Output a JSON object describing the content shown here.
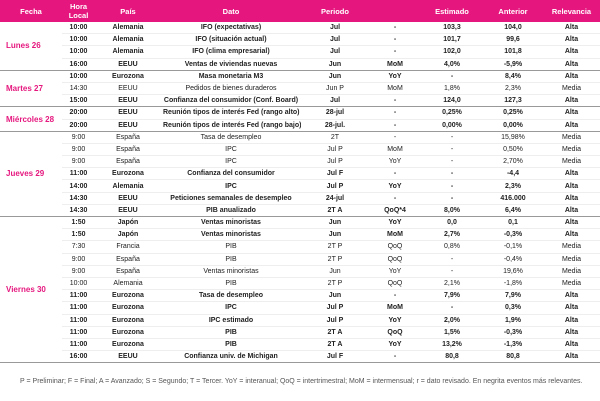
{
  "table": {
    "headers": [
      "Fecha",
      "Hora Local",
      "País",
      "Dato",
      "Periodo",
      "Estimado",
      "Anterior",
      "Relevancia"
    ],
    "groups": [
      {
        "date": "Lunes 26",
        "rows": [
          {
            "bold": true,
            "cells": [
              "10:00",
              "Alemania",
              "IFO (expectativas)",
              "Jul",
              "-",
              "103,3",
              "104,0",
              "Alta"
            ]
          },
          {
            "bold": true,
            "cells": [
              "10:00",
              "Alemania",
              "IFO (situación actual)",
              "Jul",
              "-",
              "101,7",
              "99,6",
              "Alta"
            ]
          },
          {
            "bold": true,
            "cells": [
              "10:00",
              "Alemania",
              "IFO (clima empresarial)",
              "Jul",
              "-",
              "102,0",
              "101,8",
              "Alta"
            ]
          },
          {
            "bold": true,
            "cells": [
              "16:00",
              "EEUU",
              "Ventas de viviendas nuevas",
              "Jun",
              "MoM",
              "4,0%",
              "-5,9%",
              "Alta"
            ]
          }
        ]
      },
      {
        "date": "Martes 27",
        "rows": [
          {
            "bold": true,
            "cells": [
              "10:00",
              "Eurozona",
              "Masa monetaria M3",
              "Jun",
              "YoY",
              "-",
              "8,4%",
              "Alta"
            ]
          },
          {
            "bold": false,
            "cells": [
              "14:30",
              "EEUU",
              "Pedidos de bienes duraderos",
              "Jun P",
              "MoM",
              "1,8%",
              "2,3%",
              "Media"
            ]
          },
          {
            "bold": true,
            "cells": [
              "15:00",
              "EEUU",
              "Confianza del consumidor (Conf. Board)",
              "Jul",
              "-",
              "124,0",
              "127,3",
              "Alta"
            ]
          }
        ]
      },
      {
        "date": "Miércoles 28",
        "rows": [
          {
            "bold": true,
            "cells": [
              "20:00",
              "EEUU",
              "Reunión tipos de interés Fed (rango alto)",
              "28-jul",
              "-",
              "0,25%",
              "0,25%",
              "Alta"
            ]
          },
          {
            "bold": true,
            "cells": [
              "20:00",
              "EEUU",
              "Reunión tipos de interés Fed (rango bajo)",
              "28-jul.",
              "-",
              "0,00%",
              "0,00%",
              "Alta"
            ]
          }
        ]
      },
      {
        "date": "Jueves 29",
        "rows": [
          {
            "bold": false,
            "cells": [
              "9:00",
              "España",
              "Tasa de desempleo",
              "2T",
              "-",
              "-",
              "15,98%",
              "Media"
            ]
          },
          {
            "bold": false,
            "cells": [
              "9:00",
              "España",
              "IPC",
              "Jul P",
              "MoM",
              "-",
              "0,50%",
              "Media"
            ]
          },
          {
            "bold": false,
            "cells": [
              "9:00",
              "España",
              "IPC",
              "Jul P",
              "YoY",
              "-",
              "2,70%",
              "Media"
            ]
          },
          {
            "bold": true,
            "cells": [
              "11:00",
              "Eurozona",
              "Confianza del consumidor",
              "Jul F",
              "-",
              "-",
              "-4,4",
              "Alta"
            ]
          },
          {
            "bold": true,
            "cells": [
              "14:00",
              "Alemania",
              "IPC",
              "Jul P",
              "YoY",
              "-",
              "2,3%",
              "Alta"
            ]
          },
          {
            "bold": true,
            "cells": [
              "14:30",
              "EEUU",
              "Peticiones semanales de desempleo",
              "24-jul",
              "-",
              "-",
              "416.000",
              "Alta"
            ]
          },
          {
            "bold": true,
            "cells": [
              "14:30",
              "EEUU",
              "PIB anualizado",
              "2T A",
              "QoQ*4",
              "8,0%",
              "6,4%",
              "Alta"
            ]
          }
        ]
      },
      {
        "date": "Viernes 30",
        "rows": [
          {
            "bold": true,
            "cells": [
              "1:50",
              "Japón",
              "Ventas minoristas",
              "Jun",
              "YoY",
              "0,0",
              "0,1",
              "Alta"
            ]
          },
          {
            "bold": true,
            "cells": [
              "1:50",
              "Japón",
              "Ventas minoristas",
              "Jun",
              "MoM",
              "2,7%",
              "-0,3%",
              "Alta"
            ]
          },
          {
            "bold": false,
            "cells": [
              "7:30",
              "Francia",
              "PIB",
              "2T P",
              "QoQ",
              "0,8%",
              "-0,1%",
              "Media"
            ]
          },
          {
            "bold": false,
            "cells": [
              "9:00",
              "España",
              "PIB",
              "2T P",
              "QoQ",
              "-",
              "-0,4%",
              "Media"
            ]
          },
          {
            "bold": false,
            "cells": [
              "9:00",
              "España",
              "Ventas minoristas",
              "Jun",
              "YoY",
              "-",
              "19,6%",
              "Media"
            ]
          },
          {
            "bold": false,
            "cells": [
              "10:00",
              "Alemania",
              "PIB",
              "2T P",
              "QoQ",
              "2,1%",
              "-1,8%",
              "Media"
            ]
          },
          {
            "bold": true,
            "cells": [
              "11:00",
              "Eurozona",
              "Tasa de desempleo",
              "Jun",
              "-",
              "7,9%",
              "7,9%",
              "Alta"
            ]
          },
          {
            "bold": true,
            "cells": [
              "11:00",
              "Eurozona",
              "IPC",
              "Jul P",
              "MoM",
              "-",
              "0,3%",
              "Alta"
            ]
          },
          {
            "bold": true,
            "cells": [
              "11:00",
              "Eurozona",
              "IPC estimado",
              "Jul P",
              "YoY",
              "2,0%",
              "1,9%",
              "Alta"
            ]
          },
          {
            "bold": true,
            "cells": [
              "11:00",
              "Eurozona",
              "PIB",
              "2T A",
              "QoQ",
              "1,5%",
              "-0,3%",
              "Alta"
            ]
          },
          {
            "bold": true,
            "cells": [
              "11:00",
              "Eurozona",
              "PIB",
              "2T A",
              "YoY",
              "13,2%",
              "-1,3%",
              "Alta"
            ]
          },
          {
            "bold": true,
            "cells": [
              "16:00",
              "EEUU",
              "Confianza univ. de Michigan",
              "Jul F",
              "-",
              "80,8",
              "80,8",
              "Alta"
            ]
          }
        ]
      }
    ]
  },
  "footnote": "P = Preliminar; F = Final; A = Avanzado; S = Segundo; T = Tercer.   YoY = interanual; QoQ = intertrimestral; MoM = intermensual; r = dato revisado. En negrita eventos más relevantes."
}
